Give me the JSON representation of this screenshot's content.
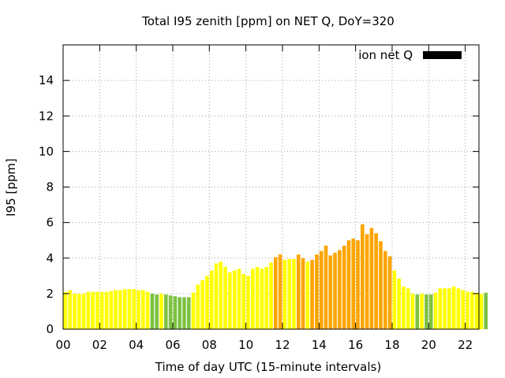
{
  "chart_data": {
    "type": "bar",
    "title": "Total I95 zenith [ppm] on NET Q, DoY=320",
    "xlabel": "Time of day UTC (15-minute intervals)",
    "ylabel": "I95 [ppm]",
    "xlim": [
      0,
      22.75
    ],
    "ylim": [
      0,
      16
    ],
    "x_ticks": [
      "00",
      "02",
      "04",
      "06",
      "08",
      "10",
      "12",
      "14",
      "16",
      "18",
      "20",
      "22"
    ],
    "y_ticks": [
      "0",
      "2",
      "4",
      "6",
      "8",
      "10",
      "12",
      "14"
    ],
    "grid": true,
    "legend": {
      "label": "ion net Q",
      "position": "top-right",
      "color": "#000000"
    },
    "interval_hours": 0.25,
    "colors": {
      "yellow": "#ffff00",
      "green": "#7dc242",
      "orange": "#ffa500"
    },
    "values": [
      2.1,
      2.2,
      2.0,
      2.0,
      2.0,
      2.1,
      2.1,
      2.1,
      2.1,
      2.1,
      2.15,
      2.2,
      2.2,
      2.25,
      2.25,
      2.25,
      2.2,
      2.2,
      2.1,
      2.0,
      1.95,
      2.0,
      1.95,
      1.9,
      1.85,
      1.8,
      1.8,
      1.8,
      2.05,
      2.5,
      2.75,
      3.0,
      3.3,
      3.7,
      3.8,
      3.5,
      3.2,
      3.3,
      3.4,
      3.1,
      3.0,
      3.4,
      3.5,
      3.4,
      3.5,
      3.75,
      4.05,
      4.2,
      3.9,
      3.95,
      3.95,
      4.2,
      4.0,
      3.8,
      3.9,
      4.2,
      4.4,
      4.7,
      4.15,
      4.3,
      4.45,
      4.7,
      5.0,
      5.1,
      5.0,
      5.9,
      5.35,
      5.7,
      5.4,
      4.95,
      4.4,
      4.1,
      3.3,
      2.85,
      2.4,
      2.3,
      2.0,
      1.95,
      2.0,
      1.95,
      1.95,
      2.05,
      2.3,
      2.3,
      2.3,
      2.4,
      2.3,
      2.2,
      2.1,
      2.1,
      2.05,
      2.0,
      2.05
    ],
    "bar_colors": [
      "yellow",
      "yellow",
      "yellow",
      "yellow",
      "yellow",
      "yellow",
      "yellow",
      "yellow",
      "yellow",
      "yellow",
      "yellow",
      "yellow",
      "yellow",
      "yellow",
      "yellow",
      "yellow",
      "yellow",
      "yellow",
      "yellow",
      "green",
      "green",
      "yellow",
      "green",
      "green",
      "green",
      "green",
      "green",
      "green",
      "yellow",
      "yellow",
      "yellow",
      "yellow",
      "yellow",
      "yellow",
      "yellow",
      "yellow",
      "yellow",
      "yellow",
      "yellow",
      "yellow",
      "yellow",
      "yellow",
      "yellow",
      "yellow",
      "yellow",
      "yellow",
      "orange",
      "orange",
      "yellow",
      "yellow",
      "yellow",
      "orange",
      "orange",
      "yellow",
      "orange",
      "orange",
      "orange",
      "orange",
      "orange",
      "orange",
      "orange",
      "orange",
      "orange",
      "orange",
      "orange",
      "orange",
      "orange",
      "orange",
      "orange",
      "orange",
      "orange",
      "orange",
      "yellow",
      "yellow",
      "yellow",
      "yellow",
      "yellow",
      "green",
      "yellow",
      "green",
      "green",
      "yellow",
      "yellow",
      "yellow",
      "yellow",
      "yellow",
      "yellow",
      "yellow",
      "yellow",
      "yellow",
      "yellow",
      "yellow",
      "green"
    ]
  }
}
